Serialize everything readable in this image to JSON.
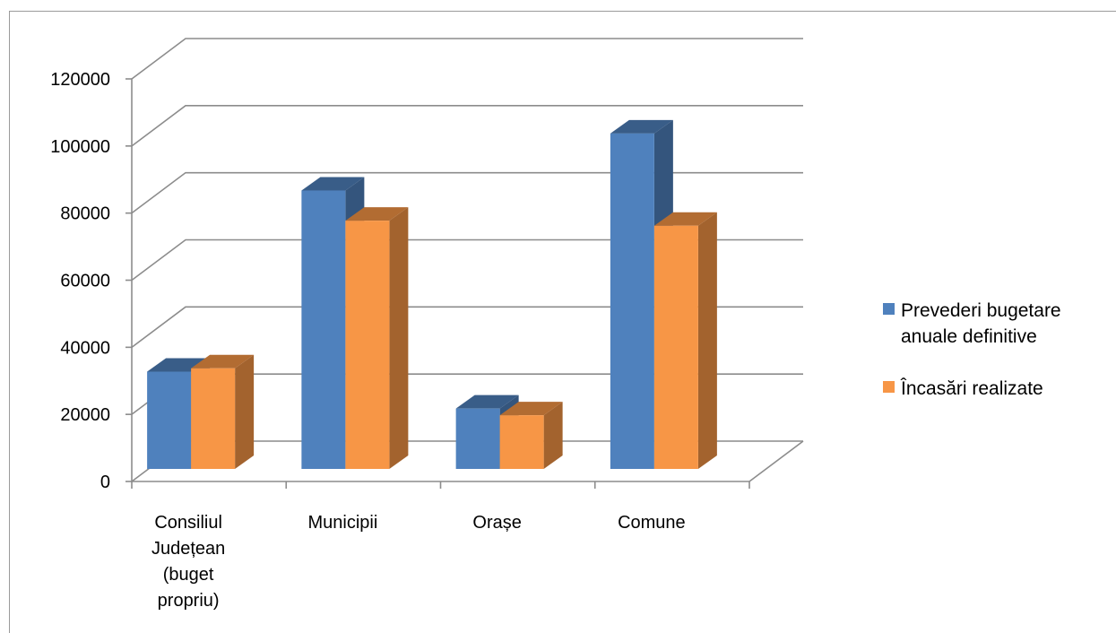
{
  "chart_data": {
    "type": "bar",
    "title": "",
    "xlabel": "",
    "ylabel": "",
    "ylim": [
      0,
      120000
    ],
    "yticks": [
      0,
      20000,
      40000,
      60000,
      80000,
      100000,
      120000
    ],
    "grid": true,
    "legend_position": "right",
    "categories": [
      [
        "Consiliul",
        "Județean",
        "(buget",
        "propriu)"
      ],
      [
        "Municipii"
      ],
      [
        "Orașe"
      ],
      [
        "Comune"
      ]
    ],
    "series": [
      {
        "name": [
          "Prevederi bugetare",
          "anuale definitive"
        ],
        "color": "#4f81bd",
        "values": [
          29000,
          83000,
          18000,
          100000
        ]
      },
      {
        "name": [
          "Încasări realizate"
        ],
        "color": "#f79646",
        "values": [
          30000,
          74000,
          16000,
          72500
        ]
      }
    ]
  }
}
